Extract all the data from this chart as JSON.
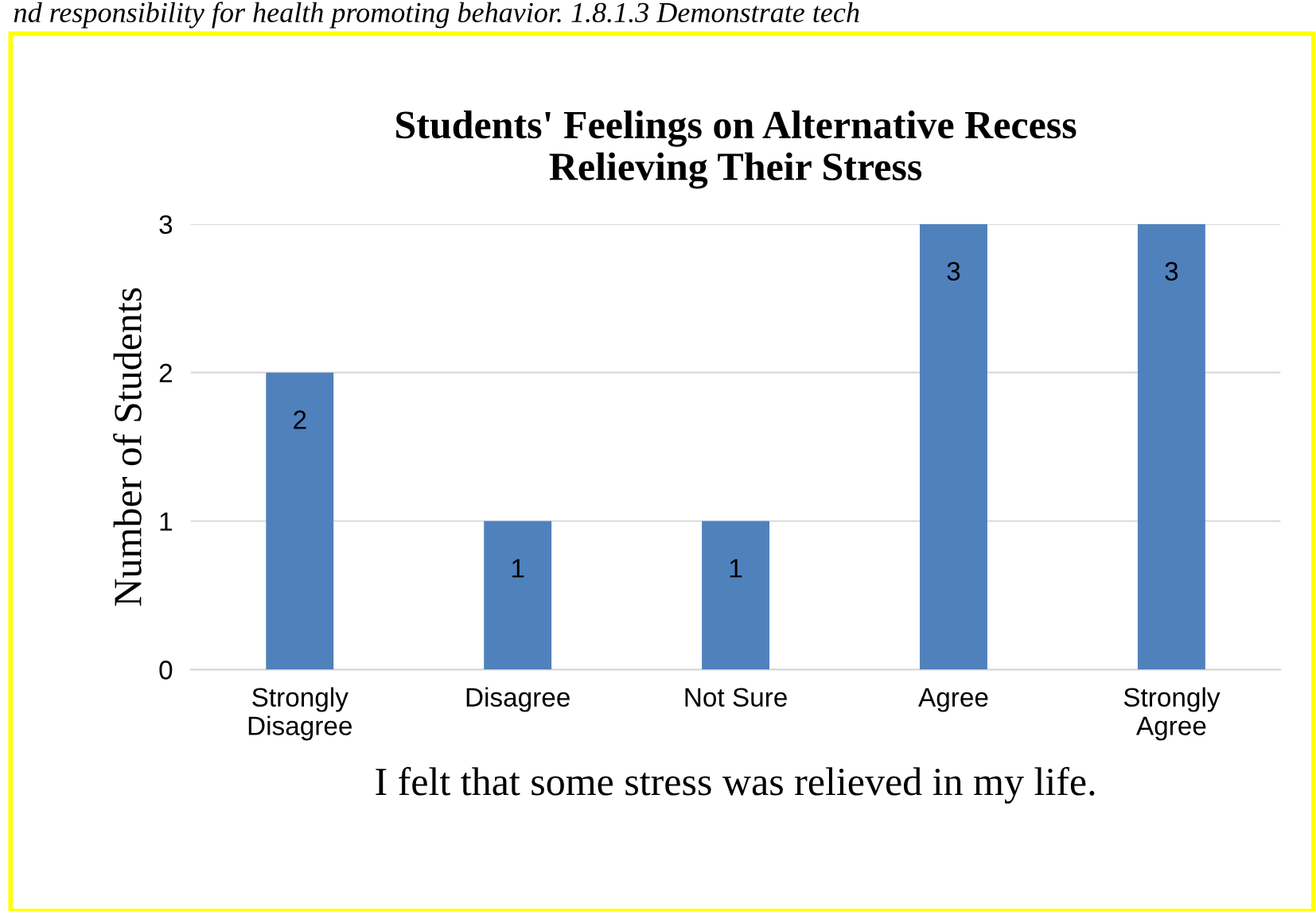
{
  "chart_data": {
    "type": "bar",
    "title": "Students' Feelings on Alternative Recess\nRelieving Their Stress",
    "categories": [
      "Strongly\nDisagree",
      "Disagree",
      "Not Sure",
      "Agree",
      "Strongly\nAgree"
    ],
    "values": [
      2,
      1,
      1,
      3,
      3
    ],
    "color": "#4f81bd",
    "xlabel": "I felt that some stress was relieved in my life.",
    "ylabel": "Number of Students",
    "ylim": [
      0,
      3
    ],
    "yticks": [
      0,
      1,
      2,
      3
    ],
    "grid": "y",
    "data_labels": true,
    "annotations": [
      "nd responsibility for health promoting behavior. 1.8.1.3 Demonstrate tech"
    ]
  }
}
